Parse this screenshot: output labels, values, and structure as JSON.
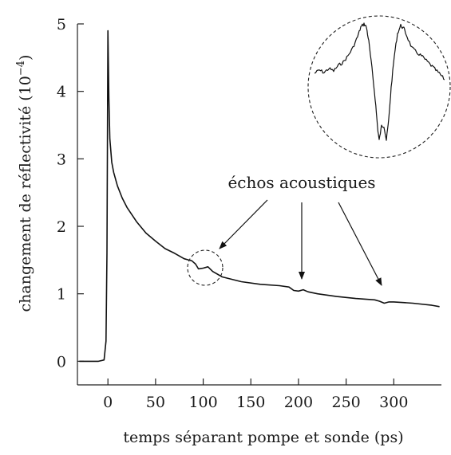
{
  "chart_data": {
    "type": "line",
    "title": "",
    "xlabel": "temps séparant pompe et sonde (ps)",
    "ylabel_main": "changement de réflectivité (10",
    "ylabel_exp": "−4",
    "ylabel_close": ")",
    "xlim": [
      -32,
      350
    ],
    "ylim": [
      -0.35,
      5.0
    ],
    "x_ticks": [
      0,
      50,
      100,
      150,
      200,
      250,
      300
    ],
    "x_tick_labels": [
      "0",
      "50",
      "100",
      "150",
      "200",
      "250",
      "300"
    ],
    "y_ticks": [
      0,
      1,
      2,
      3,
      4,
      5
    ],
    "y_tick_labels": [
      "0",
      "1",
      "2",
      "3",
      "4",
      "5"
    ],
    "grid": false,
    "legend": "none",
    "annotation": {
      "text": "échos acoustiques",
      "echo_times_ps": [
        100,
        200,
        290
      ]
    },
    "series": [
      {
        "x": [
          -30,
          -20,
          -10,
          -4,
          -2,
          -1,
          0,
          1,
          2,
          4,
          6,
          10,
          15,
          20,
          30,
          40,
          50,
          60,
          70,
          80,
          85,
          88,
          92,
          95,
          100,
          105,
          110,
          120,
          140,
          160,
          180,
          190,
          195,
          200,
          205,
          210,
          220,
          240,
          260,
          280,
          285,
          290,
          295,
          300,
          310,
          320,
          340,
          348
        ],
        "values": [
          0.0,
          0.0,
          0.0,
          0.02,
          0.3,
          1.6,
          4.9,
          3.9,
          3.3,
          2.95,
          2.8,
          2.6,
          2.42,
          2.28,
          2.07,
          1.9,
          1.78,
          1.67,
          1.6,
          1.52,
          1.5,
          1.49,
          1.44,
          1.37,
          1.38,
          1.4,
          1.33,
          1.25,
          1.18,
          1.14,
          1.12,
          1.1,
          1.05,
          1.04,
          1.06,
          1.03,
          1.0,
          0.96,
          0.93,
          0.91,
          0.89,
          0.86,
          0.88,
          0.88,
          0.87,
          0.86,
          0.83,
          0.81
        ]
      }
    ]
  }
}
